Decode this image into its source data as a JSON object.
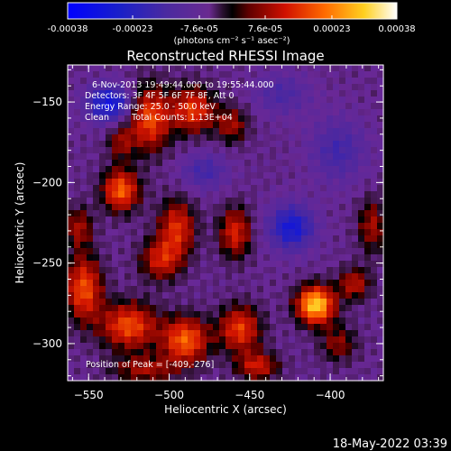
{
  "chart_data": {
    "type": "heatmap",
    "title": "Reconstructed RHESSI Image",
    "xlabel": "Heliocentric X (arcsec)",
    "ylabel": "Heliocentric Y (arcsec)",
    "xlim": [
      -563,
      -367
    ],
    "ylim": [
      -323,
      -127
    ],
    "x_ticks": [
      -550,
      -500,
      -450,
      -400
    ],
    "y_ticks": [
      -150,
      -200,
      -250,
      -300
    ],
    "colorbar": {
      "range": [
        -0.00038,
        0.00038
      ],
      "tick_values": [
        -0.00038,
        -0.00023,
        -7.6e-05,
        7.6e-05,
        0.00023,
        0.00038
      ],
      "tick_labels": [
        "-0.00038",
        "-0.00023",
        "-7.6e-05",
        "7.6e-05",
        "0.00023",
        "0.00038"
      ],
      "unit_label": "(photons cm⁻² s⁻¹ asec⁻²)"
    },
    "annotations": {
      "time_range": "6-Nov-2013 19:49:44.000 to 19:55:44.000",
      "detectors": "Detectors: 3F 4F 5F 6F 7F 8F, Att 0",
      "energy": "Energy Range: 25.0 - 50.0 keV",
      "method": "Clean",
      "counts": "Total Counts: 1.13E+04",
      "peak": "Position of Peak = [-409,-276]"
    },
    "peak_position": [
      -409,
      -276
    ],
    "sources": [
      {
        "x": -512,
        "y": -160,
        "amp": 0.00024,
        "sx": 9,
        "sy": 14
      },
      {
        "x": -485,
        "y": -155,
        "amp": 0.00022,
        "sx": 9,
        "sy": 10
      },
      {
        "x": -530,
        "y": -205,
        "amp": 0.00026,
        "sx": 8,
        "sy": 9
      },
      {
        "x": -495,
        "y": -228,
        "amp": 0.0002,
        "sx": 8,
        "sy": 12
      },
      {
        "x": -505,
        "y": -248,
        "amp": 0.00018,
        "sx": 9,
        "sy": 9
      },
      {
        "x": -459,
        "y": -231,
        "amp": 0.00019,
        "sx": 7,
        "sy": 11
      },
      {
        "x": -461,
        "y": -164,
        "amp": 0.00014,
        "sx": 7,
        "sy": 8
      },
      {
        "x": -553,
        "y": -266,
        "amp": 0.00024,
        "sx": 8,
        "sy": 14
      },
      {
        "x": -525,
        "y": -289,
        "amp": 0.00024,
        "sx": 12,
        "sy": 10
      },
      {
        "x": -490,
        "y": -298,
        "amp": 0.00026,
        "sx": 10,
        "sy": 10
      },
      {
        "x": -456,
        "y": -291,
        "amp": 0.00022,
        "sx": 9,
        "sy": 10
      },
      {
        "x": -409,
        "y": -276,
        "amp": 0.00038,
        "sx": 8,
        "sy": 8
      },
      {
        "x": -385,
        "y": -263,
        "amp": 0.00016,
        "sx": 7,
        "sy": 7
      },
      {
        "x": -445,
        "y": -314,
        "amp": 0.00018,
        "sx": 9,
        "sy": 6
      },
      {
        "x": -395,
        "y": -300,
        "amp": 0.00012,
        "sx": 8,
        "sy": 8
      },
      {
        "x": -374,
        "y": -227,
        "amp": 0.00014,
        "sx": 6,
        "sy": 12
      },
      {
        "x": -556,
        "y": -228,
        "amp": 0.00014,
        "sx": 6,
        "sy": 9
      },
      {
        "x": -530,
        "y": -175,
        "amp": 0.00012,
        "sx": 6,
        "sy": 8
      },
      {
        "x": -515,
        "y": -316,
        "amp": 0.00014,
        "sx": 14,
        "sy": 6
      },
      {
        "x": -537,
        "y": -151,
        "amp": -0.00024,
        "sx": 10,
        "sy": 8
      },
      {
        "x": -424,
        "y": -228,
        "amp": -0.00022,
        "sx": 10,
        "sy": 10
      },
      {
        "x": -478,
        "y": -193,
        "amp": -0.00012,
        "sx": 10,
        "sy": 8
      },
      {
        "x": -395,
        "y": -180,
        "amp": -0.00012,
        "sx": 12,
        "sy": 14
      },
      {
        "x": -430,
        "y": -145,
        "amp": -0.0001,
        "sx": 12,
        "sy": 9
      }
    ],
    "baseline": -7e-05,
    "grid": false
  },
  "footer": {
    "timestamp": "18-May-2022 03:39"
  },
  "colors": {
    "background": "#000000",
    "text": "#ffffff"
  }
}
